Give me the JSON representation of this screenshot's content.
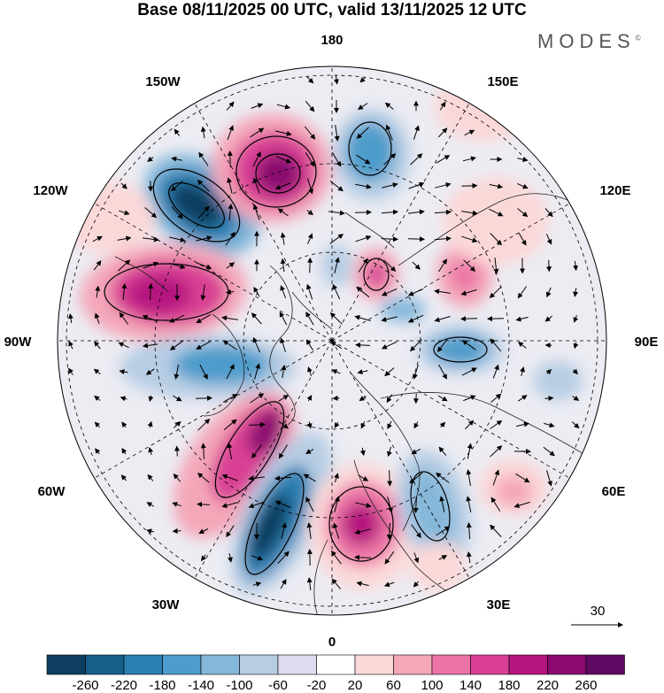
{
  "title": "Base 08/11/2025 00 UTC, valid 13/11/2025 12 UTC",
  "brand": "MODES",
  "brand_mark": "©",
  "longitude_labels": {
    "lon_180": "180",
    "lon_150w": "150W",
    "lon_150e": "150E",
    "lon_120w": "120W",
    "lon_120e": "120E",
    "lon_90w": "90W",
    "lon_90e": "90E",
    "lon_60w": "60W",
    "lon_60e": "60E",
    "lon_30w": "30W",
    "lon_30e": "30E",
    "lon_0": "0"
  },
  "reference_vector": {
    "label": "30"
  },
  "colorbar": {
    "ticks": [
      "-260",
      "-220",
      "-180",
      "-140",
      "-100",
      "-60",
      "-20",
      "20",
      "60",
      "100",
      "140",
      "180",
      "220",
      "260"
    ],
    "colors": [
      "#0d3e5f",
      "#155f8a",
      "#2a7fb3",
      "#4e9ccb",
      "#84b7d9",
      "#b7cde4",
      "#dcdcee",
      "#ffffff",
      "#fbd8d8",
      "#f4a7b9",
      "#ec74a6",
      "#d93f94",
      "#b5157f",
      "#8a0a70",
      "#5e0a62"
    ]
  },
  "anomaly_centers": [
    {
      "name": "low-alaska",
      "value": -240
    },
    {
      "name": "high-bering",
      "value": 230
    },
    {
      "name": "low-east-siberia",
      "value": -160
    },
    {
      "name": "high-canada",
      "value": 200
    },
    {
      "name": "low-hudson",
      "value": -150
    },
    {
      "name": "high-greenland",
      "value": 240
    },
    {
      "name": "low-north-atlantic",
      "value": -250
    },
    {
      "name": "high-scandinavia",
      "value": 200
    },
    {
      "name": "low-west-russia",
      "value": -140
    },
    {
      "name": "low-central-siberia",
      "value": -150
    },
    {
      "name": "high-siberia-a",
      "value": 130
    },
    {
      "name": "high-siberia-b",
      "value": 150
    },
    {
      "name": "low-small-arctic",
      "value": -100
    },
    {
      "name": "high-asia",
      "value": 80
    },
    {
      "name": "high-north-africa",
      "value": 100
    }
  ]
}
